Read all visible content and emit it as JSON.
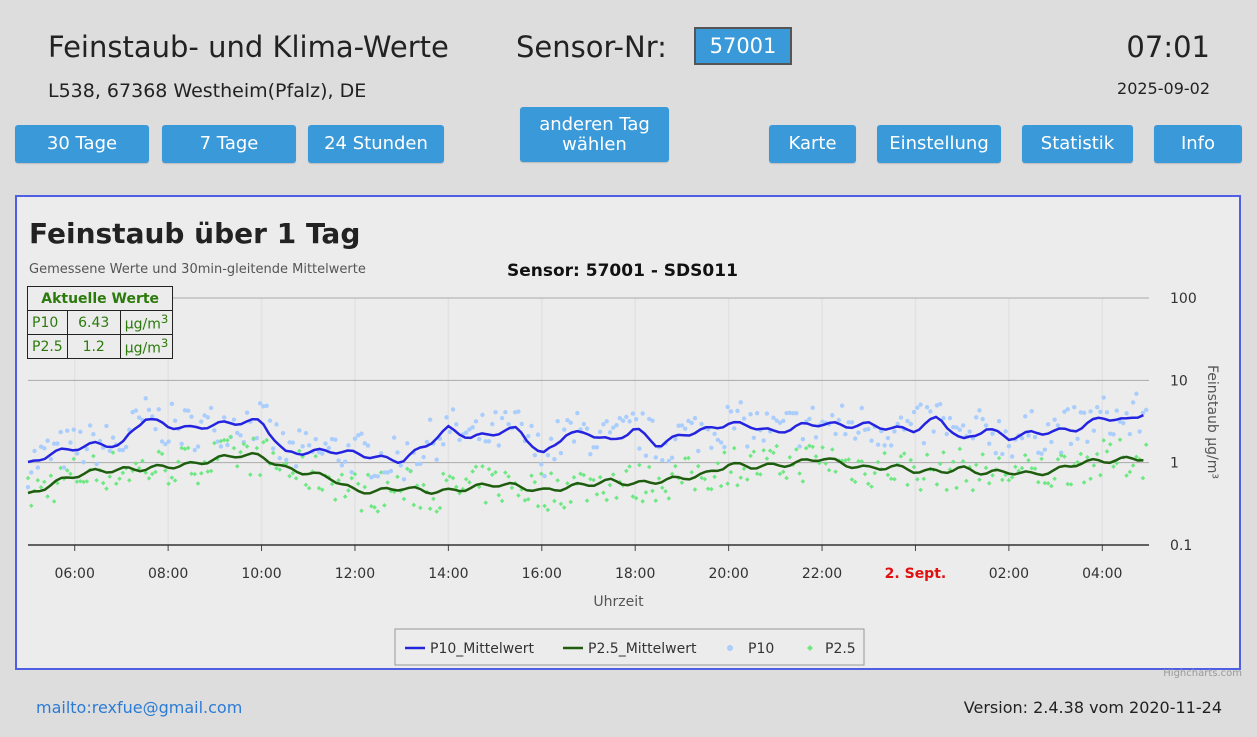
{
  "header": {
    "title": "Feinstaub- und Klima-Werte",
    "address": "L538, 67368 Westheim(Pfalz), DE",
    "sensor_label": "Sensor-Nr:",
    "sensor_value": "57001",
    "time": "07:01",
    "date": "2025-09-02"
  },
  "buttons": {
    "days30": "30 Tage",
    "days7": "7 Tage",
    "hours24": "24 Stunden",
    "other_day_1": "anderen Tag",
    "other_day_2": "wählen",
    "map": "Karte",
    "settings": "Einstellung",
    "stats": "Statistik",
    "info": "Info"
  },
  "current_values": {
    "heading": "Aktuelle Werte",
    "rows": [
      {
        "name": "P10",
        "value": "6.43",
        "unit": "µg/m",
        "sup": "3"
      },
      {
        "name": "P2.5",
        "value": "1.2",
        "unit": "µg/m",
        "sup": "3"
      }
    ]
  },
  "chart_data": {
    "type": "line",
    "title": "Feinstaub über 1 Tag",
    "subtitle": "Gemessene Werte und 30min-gleitende Mittelwerte",
    "sensor_title": "Sensor: 57001 - SDS011",
    "xlabel": "Uhrzeit",
    "ylabel": "Feinstaub µg/m³",
    "y_scale": "log",
    "ylim": [
      0.1,
      100
    ],
    "y_ticks": [
      "100",
      "10",
      "1",
      "0.1"
    ],
    "x_range_hours": [
      5,
      29
    ],
    "x_ticks": [
      {
        "label": "06:00",
        "hour": 6,
        "highlight": false
      },
      {
        "label": "08:00",
        "hour": 8,
        "highlight": false
      },
      {
        "label": "10:00",
        "hour": 10,
        "highlight": false
      },
      {
        "label": "12:00",
        "hour": 12,
        "highlight": false
      },
      {
        "label": "14:00",
        "hour": 14,
        "highlight": false
      },
      {
        "label": "16:00",
        "hour": 16,
        "highlight": false
      },
      {
        "label": "18:00",
        "hour": 18,
        "highlight": false
      },
      {
        "label": "20:00",
        "hour": 20,
        "highlight": false
      },
      {
        "label": "22:00",
        "hour": 22,
        "highlight": false
      },
      {
        "label": "2. Sept.",
        "hour": 24,
        "highlight": true
      },
      {
        "label": "02:00",
        "hour": 26,
        "highlight": false
      },
      {
        "label": "04:00",
        "hour": 28,
        "highlight": false
      }
    ],
    "grid": true,
    "legend_position": "bottom-center",
    "series": [
      {
        "name": "P10_Mittelwert",
        "kind": "line",
        "color": "#2323e0",
        "x": [
          5,
          5.5,
          6,
          6.5,
          7,
          7.25,
          7.5,
          8,
          8.5,
          9,
          9.5,
          10,
          10.5,
          11,
          11.5,
          12,
          12.5,
          13,
          13.5,
          14,
          14.5,
          15,
          15.5,
          16,
          16.5,
          17,
          17.5,
          18,
          18.5,
          19,
          19.5,
          20,
          20.5,
          21,
          21.5,
          22,
          22.5,
          23,
          23.5,
          24,
          24.5,
          25,
          25.5,
          26,
          26.5,
          27,
          27.5,
          28,
          28.5,
          29
        ],
        "y": [
          0.95,
          1.3,
          1.5,
          1.7,
          1.6,
          2.5,
          3.5,
          2.8,
          2.6,
          2.9,
          3.1,
          3.2,
          1.3,
          1.35,
          1.4,
          1.3,
          1.15,
          1.05,
          1.6,
          2.6,
          2.0,
          2.3,
          2.6,
          1.2,
          2.2,
          2.3,
          1.8,
          2.6,
          1.6,
          2.2,
          2.5,
          3.0,
          2.8,
          2.3,
          2.8,
          3.0,
          2.8,
          2.9,
          2.6,
          2.5,
          3.6,
          1.8,
          2.6,
          2.0,
          2.3,
          2.4,
          2.6,
          3.6,
          3.2,
          4.3
        ]
      },
      {
        "name": "P2.5_Mittelwert",
        "kind": "line",
        "color": "#1e5c0e",
        "x": [
          5,
          5.5,
          6,
          6.5,
          7,
          7.5,
          8,
          8.5,
          9,
          9.5,
          10,
          10.5,
          11,
          11.5,
          12,
          12.5,
          13,
          13.5,
          14,
          14.5,
          15,
          15.5,
          16,
          16.5,
          17,
          17.5,
          18,
          18.5,
          19,
          19.5,
          20,
          20.5,
          21,
          21.5,
          22,
          22.5,
          23,
          23.5,
          24,
          24.5,
          25,
          25.5,
          26,
          26.5,
          27,
          27.5,
          28,
          28.5,
          29
        ],
        "y": [
          0.4,
          0.55,
          0.7,
          0.8,
          0.82,
          0.85,
          0.9,
          0.95,
          1.1,
          1.25,
          1.2,
          0.85,
          0.75,
          0.65,
          0.45,
          0.45,
          0.5,
          0.45,
          0.45,
          0.5,
          0.55,
          0.52,
          0.45,
          0.5,
          0.55,
          0.6,
          0.55,
          0.6,
          0.65,
          0.72,
          0.95,
          0.9,
          0.92,
          1.0,
          1.15,
          0.95,
          0.85,
          0.9,
          0.8,
          0.78,
          0.85,
          0.75,
          0.78,
          0.72,
          0.8,
          1.0,
          1.05,
          1.1,
          1.15
        ]
      },
      {
        "name": "P10",
        "kind": "scatter",
        "color": "#a9cdfc"
      },
      {
        "name": "P2.5",
        "kind": "scatter",
        "color": "#6fe884"
      }
    ]
  },
  "footer": {
    "mail": "mailto:rexfue@gmail.com",
    "version": "Version: 2.4.38 vom 2020-11-24",
    "credit": "Highcharts.com"
  }
}
